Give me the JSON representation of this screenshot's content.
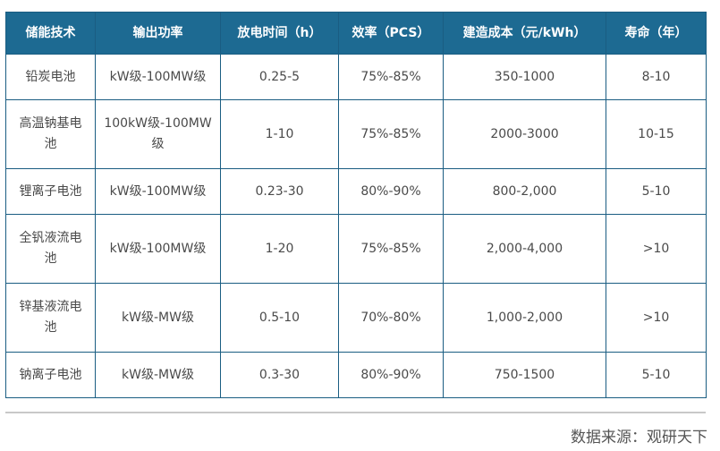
{
  "table": {
    "headers": [
      "储能技术",
      "输出功率",
      "放电时间（h）",
      "效率（PCS）",
      "建造成本（元/kWh）",
      "寿命（年）"
    ],
    "rows": [
      [
        "铅炭电池",
        "kW级-100MW级",
        "0.25-5",
        "75%-85%",
        "350-1000",
        "8-10"
      ],
      [
        "高温钠基电池",
        "100kW级-100MW级",
        "1-10",
        "75%-85%",
        "2000-3000",
        "10-15"
      ],
      [
        "锂离子电池",
        "kW级-100MW级",
        "0.23-30",
        "80%-90%",
        "800-2,000",
        "5-10"
      ],
      [
        "全钒液流电池",
        "kW级-100MW级",
        "1-20",
        "75%-85%",
        "2,000-4,000",
        ">10"
      ],
      [
        "锌基液流电池",
        "kW级-MW级",
        "0.5-10",
        "70%-80%",
        "1,000-2,000",
        ">10"
      ],
      [
        "钠离子电池",
        "kW级-MW级",
        "0.3-30",
        "80%-90%",
        "750-1500",
        "5-10"
      ]
    ]
  },
  "source": "数据来源：观研天下"
}
